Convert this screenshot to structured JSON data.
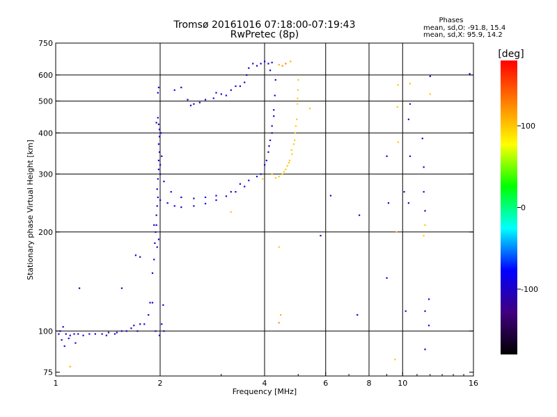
{
  "chart_data": {
    "type": "scatter",
    "title": "Tromsø 20161016 07:18:00-07:19:43",
    "subtitle": "RwPretec (8p)",
    "xlabel": "Frequency [MHz]",
    "ylabel": "Stationary phase Virtual Height [km]",
    "x_scale": "log2",
    "y_scale": "log",
    "xlim": [
      1,
      16
    ],
    "ylim": [
      73,
      750
    ],
    "grid": true,
    "x_ticks": [
      {
        "value": 1,
        "label": "1"
      },
      {
        "value": 2,
        "label": "2"
      },
      {
        "value": 4,
        "label": "4"
      },
      {
        "value": 6,
        "label": "6"
      },
      {
        "value": 8,
        "label": "8"
      },
      {
        "value": 10,
        "label": "10"
      },
      {
        "value": 16,
        "label": "16"
      }
    ],
    "x_gridlines": [
      2,
      4,
      6,
      8,
      10
    ],
    "y_ticks": [
      {
        "value": 75,
        "label": "75"
      },
      {
        "value": 100,
        "label": "100"
      },
      {
        "value": 200,
        "label": "200"
      },
      {
        "value": 300,
        "label": "300"
      },
      {
        "value": 400,
        "label": "400"
      },
      {
        "value": 500,
        "label": "500"
      },
      {
        "value": 600,
        "label": "600"
      },
      {
        "value": 750,
        "label": "750"
      }
    ],
    "y_gridlines": [
      100,
      200,
      300,
      400,
      500,
      600
    ],
    "info_block": {
      "title": "Phases",
      "lines": [
        "mean, sd,O: -91.8, 15.4",
        "mean, sd,X:  95.9, 14.2"
      ]
    },
    "colorbar": {
      "label": "[deg]",
      "range": [
        -180,
        180
      ],
      "ticks": [
        {
          "value": 100,
          "label": "100"
        },
        {
          "value": 0,
          "label": "0"
        },
        {
          "value": -100,
          "label": "-100"
        }
      ],
      "colors": [
        "#000000",
        "#400080",
        "#0000ff",
        "#00ffff",
        "#00ff00",
        "#ffff00",
        "#ff8000",
        "#ff0000"
      ]
    },
    "series": [
      {
        "points": [
          [
            1.02,
            98,
            -95
          ],
          [
            1.03,
            100,
            -100
          ],
          [
            1.05,
            103,
            -98
          ],
          [
            1.07,
            98,
            -92
          ],
          [
            1.1,
            97,
            -95
          ],
          [
            1.13,
            98,
            -100
          ],
          [
            1.16,
            98,
            -96
          ],
          [
            1.2,
            97,
            -93
          ],
          [
            1.25,
            98,
            -95
          ],
          [
            1.3,
            98,
            -97
          ],
          [
            1.36,
            98,
            -90
          ],
          [
            1.42,
            99,
            -95
          ],
          [
            1.48,
            98,
            -98
          ],
          [
            1.55,
            100,
            -92
          ],
          [
            1.6,
            100,
            -95
          ],
          [
            1.65,
            102,
            -100
          ],
          [
            1.68,
            104,
            -96
          ],
          [
            1.06,
            90,
            -100
          ],
          [
            1.04,
            94,
            -110
          ],
          [
            1.09,
            95,
            -92
          ],
          [
            1.17,
            135,
            -108
          ],
          [
            1.4,
            97,
            -97
          ],
          [
            1.5,
            99,
            -100
          ],
          [
            1.75,
            105,
            -95
          ],
          [
            1.72,
            100,
            -98
          ],
          [
            1.8,
            105,
            -100
          ],
          [
            1.85,
            112,
            -92
          ],
          [
            1.87,
            122,
            -95
          ],
          [
            1.9,
            150,
            -100
          ],
          [
            1.92,
            165,
            -90
          ],
          [
            1.93,
            185,
            -95
          ],
          [
            1.94,
            200,
            -97
          ],
          [
            1.95,
            210,
            -90
          ],
          [
            1.95,
            225,
            -95
          ],
          [
            1.96,
            240,
            -92
          ],
          [
            1.97,
            255,
            -100
          ],
          [
            1.96,
            270,
            -95
          ],
          [
            1.97,
            290,
            -93
          ],
          [
            1.98,
            310,
            -98
          ],
          [
            1.98,
            330,
            -95
          ],
          [
            1.99,
            350,
            -100
          ],
          [
            1.98,
            370,
            -96
          ],
          [
            1.99,
            390,
            -93
          ],
          [
            1.99,
            410,
            -95
          ],
          [
            1.98,
            425,
            -97
          ],
          [
            1.97,
            445,
            -90
          ],
          [
            1.97,
            530,
            -92
          ],
          [
            1.98,
            550,
            -100
          ],
          [
            1.95,
            430,
            -105
          ],
          [
            2.0,
            320,
            -95
          ],
          [
            2.02,
            340,
            -92
          ],
          [
            2.01,
            400,
            -96
          ],
          [
            2.0,
            300,
            -100
          ],
          [
            1.92,
            210,
            -100
          ],
          [
            1.96,
            180,
            -95
          ],
          [
            1.98,
            190,
            -96
          ],
          [
            1.9,
            122,
            -95
          ],
          [
            1.94,
            100,
            -105
          ],
          [
            1.99,
            97,
            -95
          ],
          [
            2.05,
            100,
            -90
          ],
          [
            2.02,
            105,
            -92
          ],
          [
            2.04,
            120,
            -95
          ],
          [
            2.0,
            250,
            -97
          ],
          [
            2.1,
            245,
            -98
          ],
          [
            2.2,
            240,
            -95
          ],
          [
            2.3,
            238,
            -96
          ],
          [
            2.5,
            240,
            -96
          ],
          [
            2.7,
            244,
            -93
          ],
          [
            2.9,
            250,
            -91
          ],
          [
            3.1,
            257,
            -90
          ],
          [
            3.3,
            265,
            -90
          ],
          [
            2.05,
            285,
            -95
          ],
          [
            2.15,
            265,
            -93
          ],
          [
            2.3,
            255,
            -90
          ],
          [
            2.5,
            253,
            -85
          ],
          [
            2.7,
            255,
            -80
          ],
          [
            2.9,
            258,
            -82
          ],
          [
            3.2,
            265,
            -95
          ],
          [
            3.5,
            275,
            -96
          ],
          [
            3.8,
            295,
            -95
          ],
          [
            4.0,
            320,
            -95
          ],
          [
            4.1,
            350,
            -93
          ],
          [
            4.15,
            380,
            -95
          ],
          [
            4.2,
            420,
            -98
          ],
          [
            4.25,
            470,
            -95
          ],
          [
            4.28,
            520,
            -96
          ],
          [
            4.3,
            580,
            -95
          ],
          [
            3.4,
            280,
            -93
          ],
          [
            3.6,
            287,
            -94
          ],
          [
            3.9,
            300,
            -96
          ],
          [
            4.05,
            330,
            -94
          ],
          [
            4.12,
            365,
            -95
          ],
          [
            4.2,
            400,
            -95
          ],
          [
            4.25,
            450,
            -95
          ],
          [
            2.4,
            505,
            -100
          ],
          [
            2.5,
            490,
            -98
          ],
          [
            2.6,
            495,
            -95
          ],
          [
            2.7,
            505,
            -93
          ],
          [
            2.85,
            510,
            -90
          ],
          [
            3.0,
            525,
            -95
          ],
          [
            3.2,
            540,
            -96
          ],
          [
            3.3,
            555,
            -93
          ],
          [
            3.5,
            570,
            -95
          ],
          [
            3.55,
            600,
            -97
          ],
          [
            3.6,
            630,
            -95
          ],
          [
            3.7,
            650,
            -93
          ],
          [
            3.8,
            640,
            -96
          ],
          [
            3.9,
            650,
            -94
          ],
          [
            4.0,
            660,
            -95
          ],
          [
            4.1,
            650,
            -92
          ],
          [
            4.2,
            655,
            -90
          ],
          [
            2.3,
            550,
            -100
          ],
          [
            2.2,
            540,
            -95
          ],
          [
            2.45,
            485,
            -97
          ],
          [
            2.9,
            530,
            -96
          ],
          [
            3.1,
            520,
            -95
          ],
          [
            3.4,
            555,
            -94
          ],
          [
            4.15,
            620,
            -95
          ],
          [
            4.3,
            292,
            100
          ],
          [
            4.4,
            295,
            100
          ],
          [
            4.5,
            300,
            98
          ],
          [
            4.6,
            310,
            100
          ],
          [
            4.7,
            325,
            100
          ],
          [
            4.8,
            345,
            100
          ],
          [
            4.85,
            370,
            98
          ],
          [
            4.9,
            400,
            100
          ],
          [
            4.95,
            440,
            100
          ],
          [
            4.97,
            490,
            95
          ],
          [
            4.99,
            540,
            100
          ],
          [
            5.0,
            580,
            100
          ],
          [
            4.55,
            305,
            100
          ],
          [
            4.65,
            318,
            100
          ],
          [
            4.72,
            330,
            100
          ],
          [
            4.78,
            355,
            98
          ],
          [
            4.88,
            380,
            100
          ],
          [
            4.92,
            420,
            98
          ],
          [
            4.98,
            510,
            100
          ],
          [
            4.5,
            640,
            120
          ],
          [
            4.6,
            650,
            130
          ],
          [
            4.4,
            645,
            110
          ],
          [
            4.75,
            660,
            110
          ],
          [
            4.2,
            300,
            100
          ],
          [
            3.95,
            290,
            95
          ],
          [
            3.2,
            230,
            100
          ],
          [
            4.4,
            180,
            100
          ],
          [
            4.45,
            112,
            110
          ],
          [
            4.4,
            106,
            120
          ],
          [
            9.5,
            82,
            100
          ],
          [
            9.6,
            200,
            100
          ],
          [
            9.7,
            560,
            100
          ],
          [
            9.65,
            480,
            100
          ],
          [
            9.7,
            375,
            100
          ],
          [
            5.4,
            475,
            100
          ],
          [
            10.5,
            565,
            100
          ],
          [
            10.1,
            265,
            -120
          ],
          [
            11.5,
            195,
            100
          ],
          [
            11.6,
            210,
            100
          ],
          [
            9.0,
            340,
            -95
          ],
          [
            9.1,
            245,
            -95
          ],
          [
            9.0,
            145,
            -95
          ],
          [
            10.4,
            245,
            -95
          ],
          [
            10.5,
            340,
            -95
          ],
          [
            11.4,
            385,
            -95
          ],
          [
            11.5,
            315,
            -95
          ],
          [
            11.5,
            265,
            -95
          ],
          [
            11.6,
            232,
            -95
          ],
          [
            11.6,
            115,
            -95
          ],
          [
            11.6,
            88,
            -95
          ],
          [
            11.9,
            125,
            -95
          ],
          [
            11.9,
            104,
            -95
          ],
          [
            7.4,
            112,
            -95
          ],
          [
            7.5,
            225,
            -95
          ],
          [
            12.0,
            595,
            -95
          ],
          [
            12.0,
            525,
            100
          ],
          [
            10.4,
            440,
            -95
          ],
          [
            10.5,
            490,
            -95
          ],
          [
            15.6,
            605,
            -95
          ],
          [
            10.2,
            115,
            -95
          ],
          [
            5.8,
            195,
            -95
          ],
          [
            6.2,
            258,
            -95
          ],
          [
            1.1,
            78,
            110
          ],
          [
            1.14,
            92,
            -95
          ],
          [
            1.55,
            135,
            -110
          ],
          [
            1.7,
            170,
            -100
          ],
          [
            1.75,
            168,
            -130
          ]
        ]
      }
    ]
  }
}
